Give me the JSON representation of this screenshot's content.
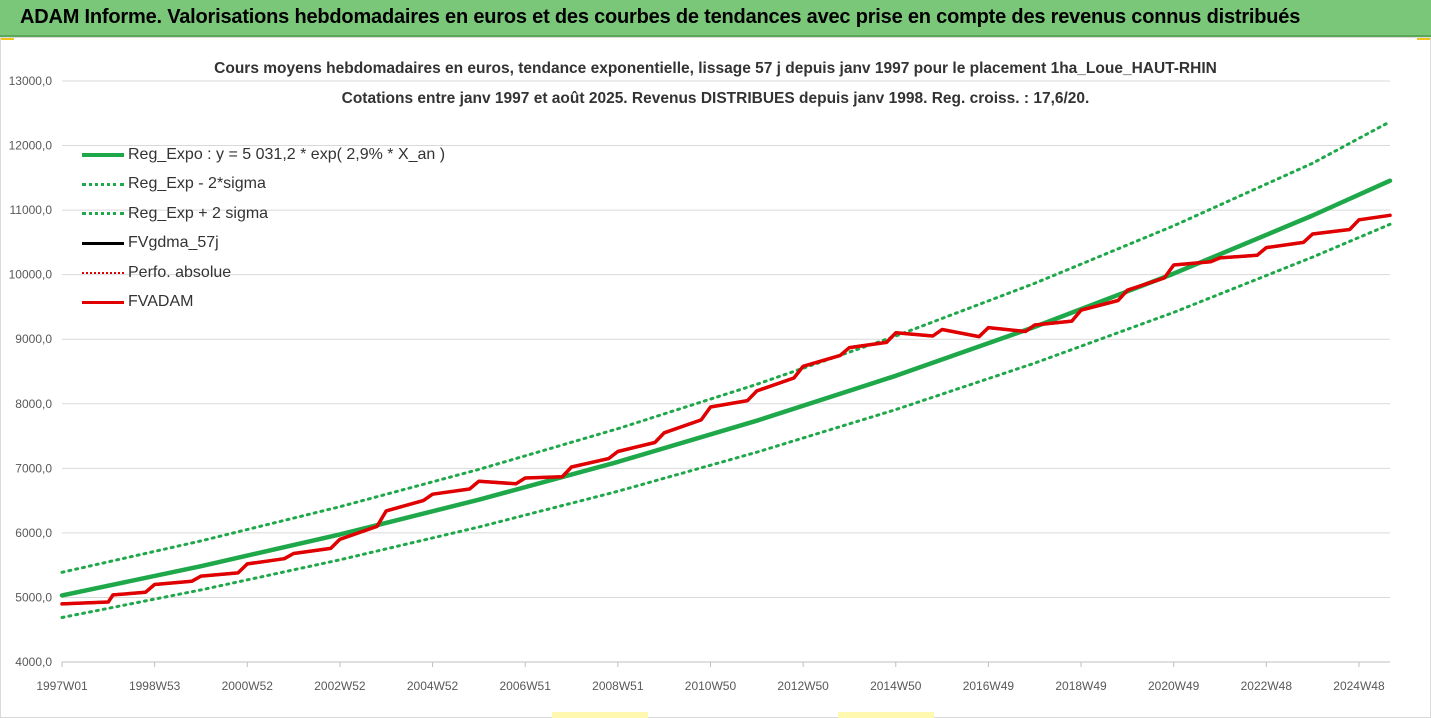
{
  "header": {
    "title": "ADAM Informe. Valorisations hebdomadaires en euros et des courbes de tendances avec prise en compte des revenus connus distribués"
  },
  "chart_data": {
    "type": "line",
    "title": "Cours moyens hebdomadaires en euros, tendance exponentielle, lissage 57 j depuis janv 1997 pour le placement 1ha_Loue_HAUT-RHIN",
    "subtitle": "Cotations entre janv 1997 et août 2025. Revenus DISTRIBUES depuis janv 1998. Reg. croiss. : 17,6/20.",
    "ylim": [
      4000,
      13000
    ],
    "xlim": [
      1997.0,
      2025.67
    ],
    "y_ticks": [
      "4000,0",
      "5000,0",
      "6000,0",
      "7000,0",
      "8000,0",
      "9000,0",
      "10000,0",
      "11000,0",
      "12000,0",
      "13000,0"
    ],
    "y_tick_values": [
      4000,
      5000,
      6000,
      7000,
      8000,
      9000,
      10000,
      11000,
      12000,
      13000
    ],
    "x_ticks": [
      "1997W01",
      "1998W53",
      "2000W52",
      "2002W52",
      "2004W52",
      "2006W51",
      "2008W51",
      "2010W50",
      "2012W50",
      "2014W50",
      "2016W49",
      "2018W49",
      "2020W49",
      "2022W48",
      "2024W48"
    ],
    "x_tick_values": [
      1997.0,
      1999.0,
      2001.0,
      2003.0,
      2005.0,
      2007.0,
      2009.0,
      2011.0,
      2013.0,
      2015.0,
      2017.0,
      2019.0,
      2021.0,
      2023.0,
      2025.0
    ],
    "grid": "horizontal",
    "legend_position": "top-left",
    "series": [
      {
        "name": "Reg_Expo : y = 5 031,2 * exp( 2,9% *  X_an )",
        "color": "#1fa84a",
        "style": "solid",
        "x": [
          1997.0,
          2000.0,
          2003.0,
          2006.0,
          2009.0,
          2012.0,
          2015.0,
          2018.0,
          2021.0,
          2024.0,
          2025.67
        ],
        "values": [
          5031,
          5484,
          5977,
          6514,
          7100,
          7738,
          8433,
          9191,
          10017,
          10917,
          11455
        ]
      },
      {
        "name": "Reg_Exp - 2*sigma",
        "color": "#1fa84a",
        "style": "dotted",
        "x": [
          1997.0,
          2000.0,
          2003.0,
          2006.0,
          2009.0,
          2012.0,
          2015.0,
          2018.0,
          2021.0,
          2024.0,
          2025.67
        ],
        "values": [
          4690,
          5117,
          5583,
          6091,
          6645,
          7250,
          7910,
          8630,
          9415,
          10272,
          10780
        ]
      },
      {
        "name": "Reg_Exp + 2 sigma",
        "color": "#1fa84a",
        "style": "dotted",
        "x": [
          1997.0,
          2000.0,
          2003.0,
          2006.0,
          2009.0,
          2012.0,
          2015.0,
          2018.0,
          2021.0,
          2024.0,
          2025.67
        ],
        "values": [
          5390,
          5876,
          6406,
          6984,
          7614,
          8301,
          9050,
          9867,
          10757,
          11727,
          12370
        ]
      },
      {
        "name": "FVgdma_57j",
        "color": "#000000",
        "style": "solid",
        "x": [
          1997.0,
          1998.0,
          1998.1,
          1998.8,
          1999.0,
          1999.8,
          2000.0,
          2000.8,
          2001.0,
          2001.8,
          2002.0,
          2002.8,
          2003.0,
          2003.8,
          2004.0,
          2004.8,
          2005.0,
          2005.8,
          2006.0,
          2006.8,
          2007.0,
          2007.8,
          2008.0,
          2008.8,
          2009.0,
          2009.8,
          2010.0,
          2010.8,
          2011.0,
          2011.8,
          2012.0,
          2012.8,
          2013.0,
          2013.8,
          2014.0,
          2014.8,
          2015.0,
          2015.8,
          2016.0,
          2016.8,
          2017.0,
          2017.8,
          2018.0,
          2018.8,
          2019.0,
          2019.8,
          2020.0,
          2020.8,
          2021.0,
          2021.8,
          2022.0,
          2022.8,
          2023.0,
          2023.8,
          2024.0,
          2024.8,
          2025.0,
          2025.67
        ],
        "values": [
          4900,
          4930,
          5040,
          5080,
          5200,
          5250,
          5330,
          5380,
          5520,
          5600,
          5680,
          5760,
          5900,
          6100,
          6340,
          6500,
          6600,
          6680,
          6800,
          6760,
          6850,
          6870,
          7020,
          7150,
          7260,
          7400,
          7550,
          7750,
          7950,
          8050,
          8200,
          8400,
          8580,
          8750,
          8870,
          8950,
          9100,
          9050,
          9150,
          9040,
          9180,
          9120,
          9220,
          9280,
          9450,
          9600,
          9760,
          9950,
          10150,
          10200,
          10260,
          10300,
          10420,
          10500,
          10630,
          10700,
          10850,
          10920
        ]
      },
      {
        "name": "Perfo. absolue",
        "color": "#e00000",
        "style": "dotted",
        "x": [
          1997.0,
          1998.0,
          1998.1,
          1998.8,
          1999.0,
          1999.8,
          2000.0,
          2000.8,
          2001.0,
          2001.8,
          2002.0,
          2002.8,
          2003.0,
          2003.8,
          2004.0,
          2004.8,
          2005.0,
          2005.8,
          2006.0,
          2006.8,
          2007.0,
          2007.8,
          2008.0,
          2008.8,
          2009.0,
          2009.8,
          2010.0,
          2010.8,
          2011.0,
          2011.8,
          2012.0,
          2012.8,
          2013.0,
          2013.8,
          2014.0,
          2014.8,
          2015.0,
          2015.8,
          2016.0,
          2016.8,
          2017.0,
          2017.8,
          2018.0,
          2018.8,
          2019.0,
          2019.8,
          2020.0,
          2020.8,
          2021.0,
          2021.8,
          2022.0,
          2022.8,
          2023.0,
          2023.8,
          2024.0,
          2024.8,
          2025.0,
          2025.67
        ],
        "values": [
          4900,
          4930,
          5040,
          5080,
          5200,
          5250,
          5330,
          5380,
          5520,
          5600,
          5680,
          5760,
          5900,
          6100,
          6340,
          6500,
          6600,
          6680,
          6800,
          6760,
          6850,
          6870,
          7020,
          7150,
          7260,
          7400,
          7550,
          7750,
          7950,
          8050,
          8200,
          8400,
          8580,
          8750,
          8870,
          8950,
          9100,
          9050,
          9150,
          9040,
          9180,
          9120,
          9220,
          9280,
          9450,
          9600,
          9760,
          9950,
          10150,
          10200,
          10260,
          10300,
          10420,
          10500,
          10630,
          10700,
          10850,
          10920
        ]
      },
      {
        "name": "FVADAM",
        "color": "#e00000",
        "style": "solid",
        "x": [
          1997.0,
          1998.0,
          1998.1,
          1998.8,
          1999.0,
          1999.8,
          2000.0,
          2000.8,
          2001.0,
          2001.8,
          2002.0,
          2002.8,
          2003.0,
          2003.8,
          2004.0,
          2004.8,
          2005.0,
          2005.8,
          2006.0,
          2006.8,
          2007.0,
          2007.8,
          2008.0,
          2008.8,
          2009.0,
          2009.8,
          2010.0,
          2010.8,
          2011.0,
          2011.8,
          2012.0,
          2012.8,
          2013.0,
          2013.8,
          2014.0,
          2014.8,
          2015.0,
          2015.8,
          2016.0,
          2016.8,
          2017.0,
          2017.8,
          2018.0,
          2018.8,
          2019.0,
          2019.8,
          2020.0,
          2020.8,
          2021.0,
          2021.8,
          2022.0,
          2022.8,
          2023.0,
          2023.8,
          2024.0,
          2024.8,
          2025.0,
          2025.67
        ],
        "values": [
          4900,
          4930,
          5040,
          5080,
          5200,
          5250,
          5330,
          5380,
          5520,
          5600,
          5680,
          5760,
          5900,
          6100,
          6340,
          6500,
          6600,
          6680,
          6800,
          6760,
          6850,
          6870,
          7020,
          7150,
          7260,
          7400,
          7550,
          7750,
          7950,
          8050,
          8200,
          8400,
          8580,
          8750,
          8870,
          8950,
          9100,
          9050,
          9150,
          9040,
          9180,
          9120,
          9220,
          9280,
          9450,
          9600,
          9760,
          9950,
          10150,
          10200,
          10260,
          10300,
          10420,
          10500,
          10630,
          10700,
          10850,
          10920
        ]
      }
    ]
  }
}
